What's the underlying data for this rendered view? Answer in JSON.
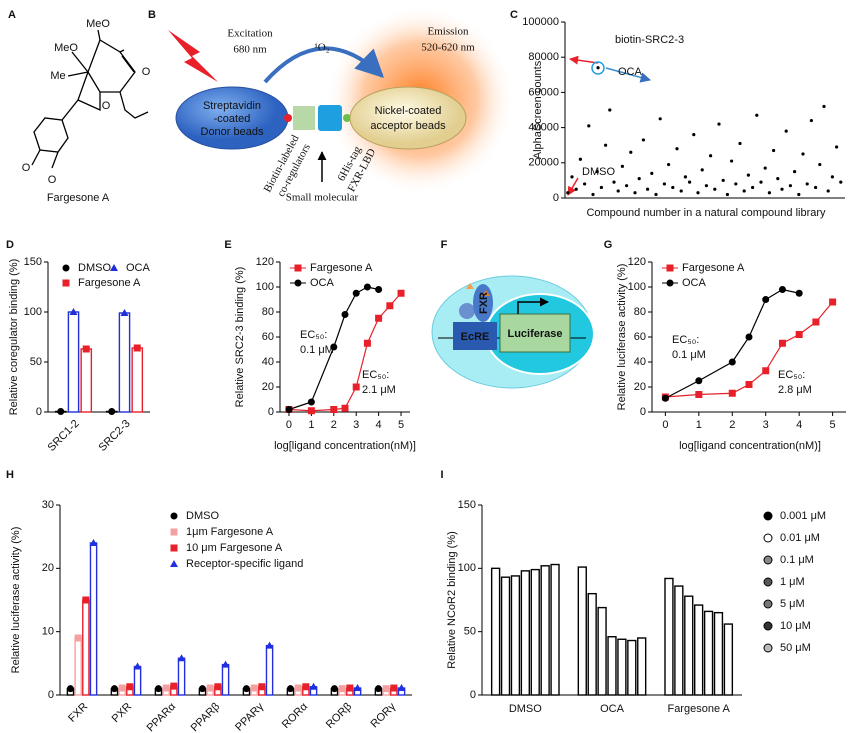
{
  "figure": {
    "panels": [
      "A",
      "B",
      "C",
      "D",
      "E",
      "F",
      "G",
      "H",
      "I"
    ],
    "molecule": {
      "labels": [
        "MeO",
        "MeO",
        "Me",
        "O",
        "O",
        "O",
        "O"
      ],
      "name": "Fargesone A"
    },
    "assay": {
      "excitation": "Excitation",
      "excitation_nm": "680 nm",
      "emission": "Emission",
      "emission_nm": "520-620 nm",
      "singlet_oxygen": "¹O₂",
      "donor": [
        "Streptavidin",
        "-coated",
        "Donor beads"
      ],
      "acceptor": [
        "Nickel-coated",
        "acceptor beads"
      ],
      "coregulators": [
        "Biotin-labeled",
        "co-regulators"
      ],
      "lbd": [
        "6His-tag",
        "FXR-LBD"
      ],
      "small_molecule": "Small molecular"
    },
    "reporter": {
      "receptor": "FXR",
      "element": "EcRE",
      "gene": "Luciferase"
    }
  },
  "chart_data": [
    {
      "type": "scatter",
      "y_label": "AlphaScreen counts",
      "x_label": "Compound number in a natural compound library",
      "annotations": [
        "biotin-SRC2-3",
        "OCA",
        "DMSO"
      ],
      "color": "#000000",
      "x": [
        10,
        25,
        40,
        55,
        70,
        85,
        100,
        115,
        130,
        145,
        160,
        175,
        190,
        205,
        220,
        235,
        250,
        265,
        280,
        295,
        310,
        325,
        340,
        355,
        370,
        385,
        400,
        415,
        430,
        445,
        460,
        475,
        490,
        505,
        520,
        535,
        550,
        565,
        580,
        595,
        610,
        625,
        640,
        655,
        670,
        685,
        700,
        715,
        730,
        745,
        760,
        775,
        790,
        805,
        820,
        835,
        850,
        865,
        880,
        895,
        910,
        925,
        940,
        955,
        970,
        985,
        118
      ],
      "values": [
        3000,
        12000,
        5000,
        22000,
        8000,
        41000,
        2000,
        15000,
        6000,
        30000,
        50000,
        9000,
        4000,
        18000,
        7000,
        26000,
        3000,
        11000,
        33000,
        5000,
        14000,
        2000,
        45000,
        8000,
        19000,
        6000,
        28000,
        4000,
        12000,
        9000,
        36000,
        3000,
        16000,
        7000,
        24000,
        5000,
        42000,
        10000,
        2000,
        21000,
        8000,
        31000,
        4000,
        13000,
        6000,
        47000,
        9000,
        17000,
        3000,
        27000,
        11000,
        5000,
        38000,
        7000,
        15000,
        2000,
        25000,
        8000,
        44000,
        6000,
        19000,
        52000,
        4000,
        12000,
        29000,
        9000,
        74000
      ],
      "xlim": [
        0,
        1000
      ],
      "ylim": [
        0,
        100000
      ],
      "yticks": [
        0,
        20000,
        40000,
        60000,
        80000,
        100000
      ]
    },
    {
      "type": "bar",
      "y_label": "Relative coregulator binding (%)",
      "categories": [
        "SRC1-2",
        "SRC2-3"
      ],
      "series": [
        {
          "name": "DMSO",
          "color": "#000000",
          "marker": "circle",
          "values": [
            0.5,
            0.5
          ]
        },
        {
          "name": "OCA",
          "color": "#1f2fd8",
          "marker": "triangle",
          "values": [
            100,
            99
          ]
        },
        {
          "name": "Fargesone A",
          "color": "#e8202a",
          "marker": "square",
          "values": [
            63,
            64
          ]
        }
      ],
      "ylim": [
        0,
        150
      ],
      "yticks": [
        0,
        50,
        100,
        150
      ]
    },
    {
      "type": "line",
      "y_label": "Relative SRC2-3 binding (%)",
      "x_label": "log[ligand concentration(nM)]",
      "annotations": [
        "EC₅₀:",
        "0.1 μM",
        "EC₅₀:",
        "2.1 μM"
      ],
      "x": [
        0,
        1,
        2,
        2.5,
        3,
        3.5,
        4,
        4.5,
        5
      ],
      "series": [
        {
          "name": "Fargesone A",
          "color": "#e8202a",
          "marker": "square",
          "values": [
            2,
            1,
            2,
            3,
            20,
            55,
            75,
            85,
            95
          ]
        },
        {
          "name": "OCA",
          "color": "#000000",
          "marker": "circle",
          "values": [
            2,
            8,
            52,
            78,
            95,
            100,
            98,
            null,
            null
          ]
        }
      ],
      "xlim": [
        -0.4,
        5.4
      ],
      "xticks": [
        0,
        1,
        2,
        3,
        4,
        5
      ],
      "ylim": [
        0,
        120
      ],
      "yticks": [
        0,
        20,
        40,
        60,
        80,
        100,
        120
      ]
    },
    {
      "type": "line",
      "y_label": "Relative luciferase activity (%)",
      "x_label": "log[ligand concentration(nM)]",
      "annotations": [
        "EC₅₀:",
        "0.1 μM",
        "EC₅₀:",
        "2.8 μM"
      ],
      "x": [
        0,
        1,
        2,
        2.5,
        3,
        3.5,
        4,
        4.5,
        5
      ],
      "series": [
        {
          "name": "Fargesone A",
          "color": "#e8202a",
          "marker": "square",
          "values": [
            12,
            14,
            15,
            22,
            33,
            55,
            62,
            72,
            88
          ]
        },
        {
          "name": "OCA",
          "color": "#000000",
          "marker": "circle",
          "values": [
            11,
            25,
            40,
            60,
            90,
            98,
            95,
            null,
            null
          ]
        }
      ],
      "xlim": [
        -0.4,
        5.4
      ],
      "xticks": [
        0,
        1,
        2,
        3,
        4,
        5
      ],
      "ylim": [
        0,
        120
      ],
      "yticks": [
        0,
        20,
        40,
        60,
        80,
        100,
        120
      ]
    },
    {
      "type": "bar",
      "y_label": "Relative luciferase activity (%)",
      "categories": [
        "FXR",
        "PXR",
        "PPARα",
        "PPARβ",
        "PPARγ",
        "RORα",
        "RORβ",
        "RORγ"
      ],
      "series": [
        {
          "name": "DMSO",
          "color": "#000000",
          "marker": "circle",
          "values": [
            1,
            1,
            1,
            1,
            1,
            1,
            1,
            1
          ]
        },
        {
          "name": "1μm Fargesone A",
          "color": "#f4a0a0",
          "marker": "square",
          "values": [
            9,
            1.1,
            1.1,
            1.1,
            1.1,
            1.1,
            1,
            1
          ]
        },
        {
          "name": "10 μm Fargesone A",
          "color": "#e8202a",
          "marker": "square",
          "values": [
            15,
            1.3,
            1.4,
            1.3,
            1.3,
            1.3,
            1.1,
            1.1
          ]
        },
        {
          "name": "Receptor-specific ligand",
          "color": "#2030e0",
          "marker": "triangle",
          "values": [
            24,
            4.5,
            5.8,
            4.8,
            7.8,
            1.3,
            1.1,
            1.1
          ]
        }
      ],
      "ylim": [
        0,
        30
      ],
      "yticks": [
        0,
        10,
        20,
        30
      ]
    },
    {
      "type": "bar",
      "y_label": "Relative NCoR2 binding (%)",
      "categories": [
        "DMSO",
        "OCA",
        "Fargesone A"
      ],
      "series": [
        {
          "name": "0.001 μM",
          "color": "#000000",
          "values": [
            100,
            101,
            92
          ]
        },
        {
          "name": "0.01 μM",
          "color": "#ffffff",
          "values": [
            93,
            80,
            86
          ]
        },
        {
          "name": "0.1 μM",
          "color": "#888888",
          "values": [
            94,
            69,
            78
          ]
        },
        {
          "name": "1 μM",
          "color": "#555555",
          "values": [
            98,
            46,
            71
          ]
        },
        {
          "name": "5 μM",
          "color": "#777777",
          "values": [
            99,
            44,
            66
          ]
        },
        {
          "name": "10 μM",
          "color": "#333333",
          "values": [
            102,
            43,
            65
          ]
        },
        {
          "name": "50 μM",
          "color": "#bbbbbb",
          "values": [
            103,
            45,
            56
          ]
        }
      ],
      "ylim": [
        0,
        150
      ],
      "yticks": [
        0,
        50,
        100,
        150
      ]
    }
  ]
}
